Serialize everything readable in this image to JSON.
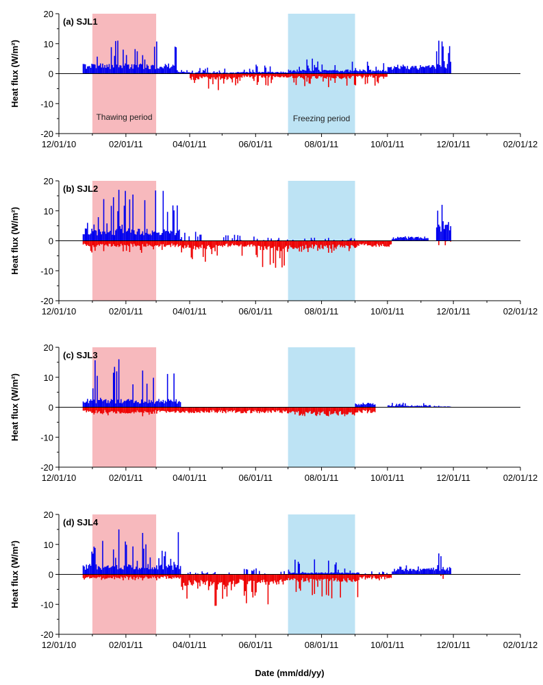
{
  "xlabel": "Date (mm/dd/yy)",
  "ylabel": "Heat flux (W/m²)",
  "x_ticks": [
    "12/01/10",
    "02/01/11",
    "04/01/11",
    "06/01/11",
    "08/01/11",
    "10/01/11",
    "12/01/11",
    "02/01/12"
  ],
  "y_ticks": [
    "20",
    "10",
    "0",
    "-10",
    "-20"
  ],
  "period_labels": {
    "thawing": "Thawing period",
    "freezing": "Freezing period"
  },
  "colors": {
    "positive": "#0000ee",
    "negative": "#ee0000",
    "thawing": "#f7b9bd",
    "freezing": "#bde3f4"
  },
  "chart_data": [
    {
      "type": "bar",
      "title": "(a) SJL1",
      "xlim": [
        "2010-12-01",
        "2012-02-01"
      ],
      "ylim": [
        -20,
        20
      ],
      "shaded_periods": [
        {
          "name": "Thawing period",
          "start": "2011-01-01",
          "end": "2011-03-01"
        },
        {
          "name": "Freezing period",
          "start": "2011-07-01",
          "end": "2011-09-01"
        }
      ],
      "segments": [
        {
          "start": "2010-12-23",
          "end": "2011-03-20",
          "pos_max": 11,
          "pos_base": 2.5,
          "neg_max": 0,
          "neg_base": 0
        },
        {
          "start": "2011-03-20",
          "end": "2011-04-01",
          "pos_max": 1.2,
          "pos_base": 0.5,
          "neg_max": 0,
          "neg_base": 0
        },
        {
          "start": "2011-04-01",
          "end": "2011-05-15",
          "pos_max": 2,
          "pos_base": 0.3,
          "neg_max": -5.5,
          "neg_base": -1.5
        },
        {
          "start": "2011-05-15",
          "end": "2011-07-01",
          "pos_max": 3,
          "pos_base": 0.5,
          "neg_max": -4,
          "neg_base": -1
        },
        {
          "start": "2011-07-01",
          "end": "2011-09-01",
          "pos_max": 5,
          "pos_base": 1,
          "neg_max": -4.5,
          "neg_base": -1.2
        },
        {
          "start": "2011-09-01",
          "end": "2011-10-01",
          "pos_max": 4,
          "pos_base": 1,
          "neg_max": -4,
          "neg_base": -1
        },
        {
          "start": "2011-10-01",
          "end": "2011-11-10",
          "pos_max": 3,
          "pos_base": 2,
          "neg_max": 0,
          "neg_base": 0
        },
        {
          "start": "2011-11-10",
          "end": "2011-11-29",
          "pos_max": 11,
          "pos_base": 2.5,
          "neg_max": 0,
          "neg_base": 0
        }
      ]
    },
    {
      "type": "bar",
      "title": "(b) SJL2",
      "xlim": [
        "2010-12-01",
        "2012-02-01"
      ],
      "ylim": [
        -20,
        20
      ],
      "shaded_periods": [
        {
          "name": "Thawing period",
          "start": "2011-01-01",
          "end": "2011-03-01"
        },
        {
          "name": "Freezing period",
          "start": "2011-07-01",
          "end": "2011-09-01"
        }
      ],
      "segments": [
        {
          "start": "2010-12-23",
          "end": "2011-03-23",
          "pos_max": 17,
          "pos_base": 3,
          "neg_max": -4,
          "neg_base": -1.5
        },
        {
          "start": "2011-03-23",
          "end": "2011-05-01",
          "pos_max": 3,
          "pos_base": 0,
          "neg_max": -7,
          "neg_base": -2
        },
        {
          "start": "2011-05-01",
          "end": "2011-06-01",
          "pos_max": 2,
          "pos_base": 0,
          "neg_max": -5,
          "neg_base": -1.5
        },
        {
          "start": "2011-06-01",
          "end": "2011-07-01",
          "pos_max": 1,
          "pos_base": 0,
          "neg_max": -9,
          "neg_base": -2.5
        },
        {
          "start": "2011-07-01",
          "end": "2011-09-05",
          "pos_max": 1,
          "pos_base": 0,
          "neg_max": -4,
          "neg_base": -2
        },
        {
          "start": "2011-09-05",
          "end": "2011-10-05",
          "pos_max": 0,
          "pos_base": 0,
          "neg_max": -2,
          "neg_base": -1.5
        },
        {
          "start": "2011-10-05",
          "end": "2011-11-08",
          "pos_max": 1.5,
          "pos_base": 1,
          "neg_max": 0,
          "neg_base": 0
        },
        {
          "start": "2011-11-15",
          "end": "2011-11-29",
          "pos_max": 12,
          "pos_base": 5,
          "neg_max": -1.5,
          "neg_base": 0
        }
      ]
    },
    {
      "type": "bar",
      "title": "(c) SJL3",
      "xlim": [
        "2010-12-01",
        "2012-02-01"
      ],
      "ylim": [
        -20,
        20
      ],
      "shaded_periods": [
        {
          "name": "Thawing period",
          "start": "2011-01-01",
          "end": "2011-03-01"
        },
        {
          "name": "Freezing period",
          "start": "2011-07-01",
          "end": "2011-09-01"
        }
      ],
      "segments": [
        {
          "start": "2010-12-23",
          "end": "2011-03-24",
          "pos_max": 16,
          "pos_base": 2,
          "neg_max": -3,
          "neg_base": -1.5
        },
        {
          "start": "2011-03-24",
          "end": "2011-07-01",
          "pos_max": 0,
          "pos_base": 0,
          "neg_max": -2,
          "neg_base": -1.5
        },
        {
          "start": "2011-07-01",
          "end": "2011-09-01",
          "pos_max": 0,
          "pos_base": 0,
          "neg_max": -3,
          "neg_base": -2
        },
        {
          "start": "2011-09-01",
          "end": "2011-09-20",
          "pos_max": 1.5,
          "pos_base": 1,
          "neg_max": -2,
          "neg_base": -1.5
        },
        {
          "start": "2011-10-01",
          "end": "2011-11-10",
          "pos_max": 1.5,
          "pos_base": 0.5,
          "neg_max": 0,
          "neg_base": 0
        },
        {
          "start": "2011-11-10",
          "end": "2011-11-29",
          "pos_max": 0.5,
          "pos_base": 0.2,
          "neg_max": 0,
          "neg_base": 0
        }
      ]
    },
    {
      "type": "bar",
      "title": "(d) SJL4",
      "xlim": [
        "2010-12-01",
        "2012-02-01"
      ],
      "ylim": [
        -20,
        20
      ],
      "shaded_periods": [
        {
          "name": "Thawing period",
          "start": "2011-01-01",
          "end": "2011-03-01"
        },
        {
          "name": "Freezing period",
          "start": "2011-07-01",
          "end": "2011-09-01"
        }
      ],
      "segments": [
        {
          "start": "2010-12-23",
          "end": "2011-03-24",
          "pos_max": 15,
          "pos_base": 2.5,
          "neg_max": -2,
          "neg_base": -1
        },
        {
          "start": "2011-03-24",
          "end": "2011-05-15",
          "pos_max": 1,
          "pos_base": 0,
          "neg_max": -10.5,
          "neg_base": -3
        },
        {
          "start": "2011-05-15",
          "end": "2011-07-01",
          "pos_max": 2,
          "pos_base": 0,
          "neg_max": -10,
          "neg_base": -2.5
        },
        {
          "start": "2011-07-01",
          "end": "2011-09-05",
          "pos_max": 5,
          "pos_base": 0.5,
          "neg_max": -8,
          "neg_base": -2
        },
        {
          "start": "2011-09-05",
          "end": "2011-10-05",
          "pos_max": 1,
          "pos_base": 0,
          "neg_max": -2,
          "neg_base": -1
        },
        {
          "start": "2011-10-05",
          "end": "2011-11-10",
          "pos_max": 3,
          "pos_base": 1.5,
          "neg_max": 0,
          "neg_base": 0
        },
        {
          "start": "2011-11-10",
          "end": "2011-11-29",
          "pos_max": 7,
          "pos_base": 2,
          "neg_max": -1.5,
          "neg_base": 0
        }
      ]
    }
  ]
}
